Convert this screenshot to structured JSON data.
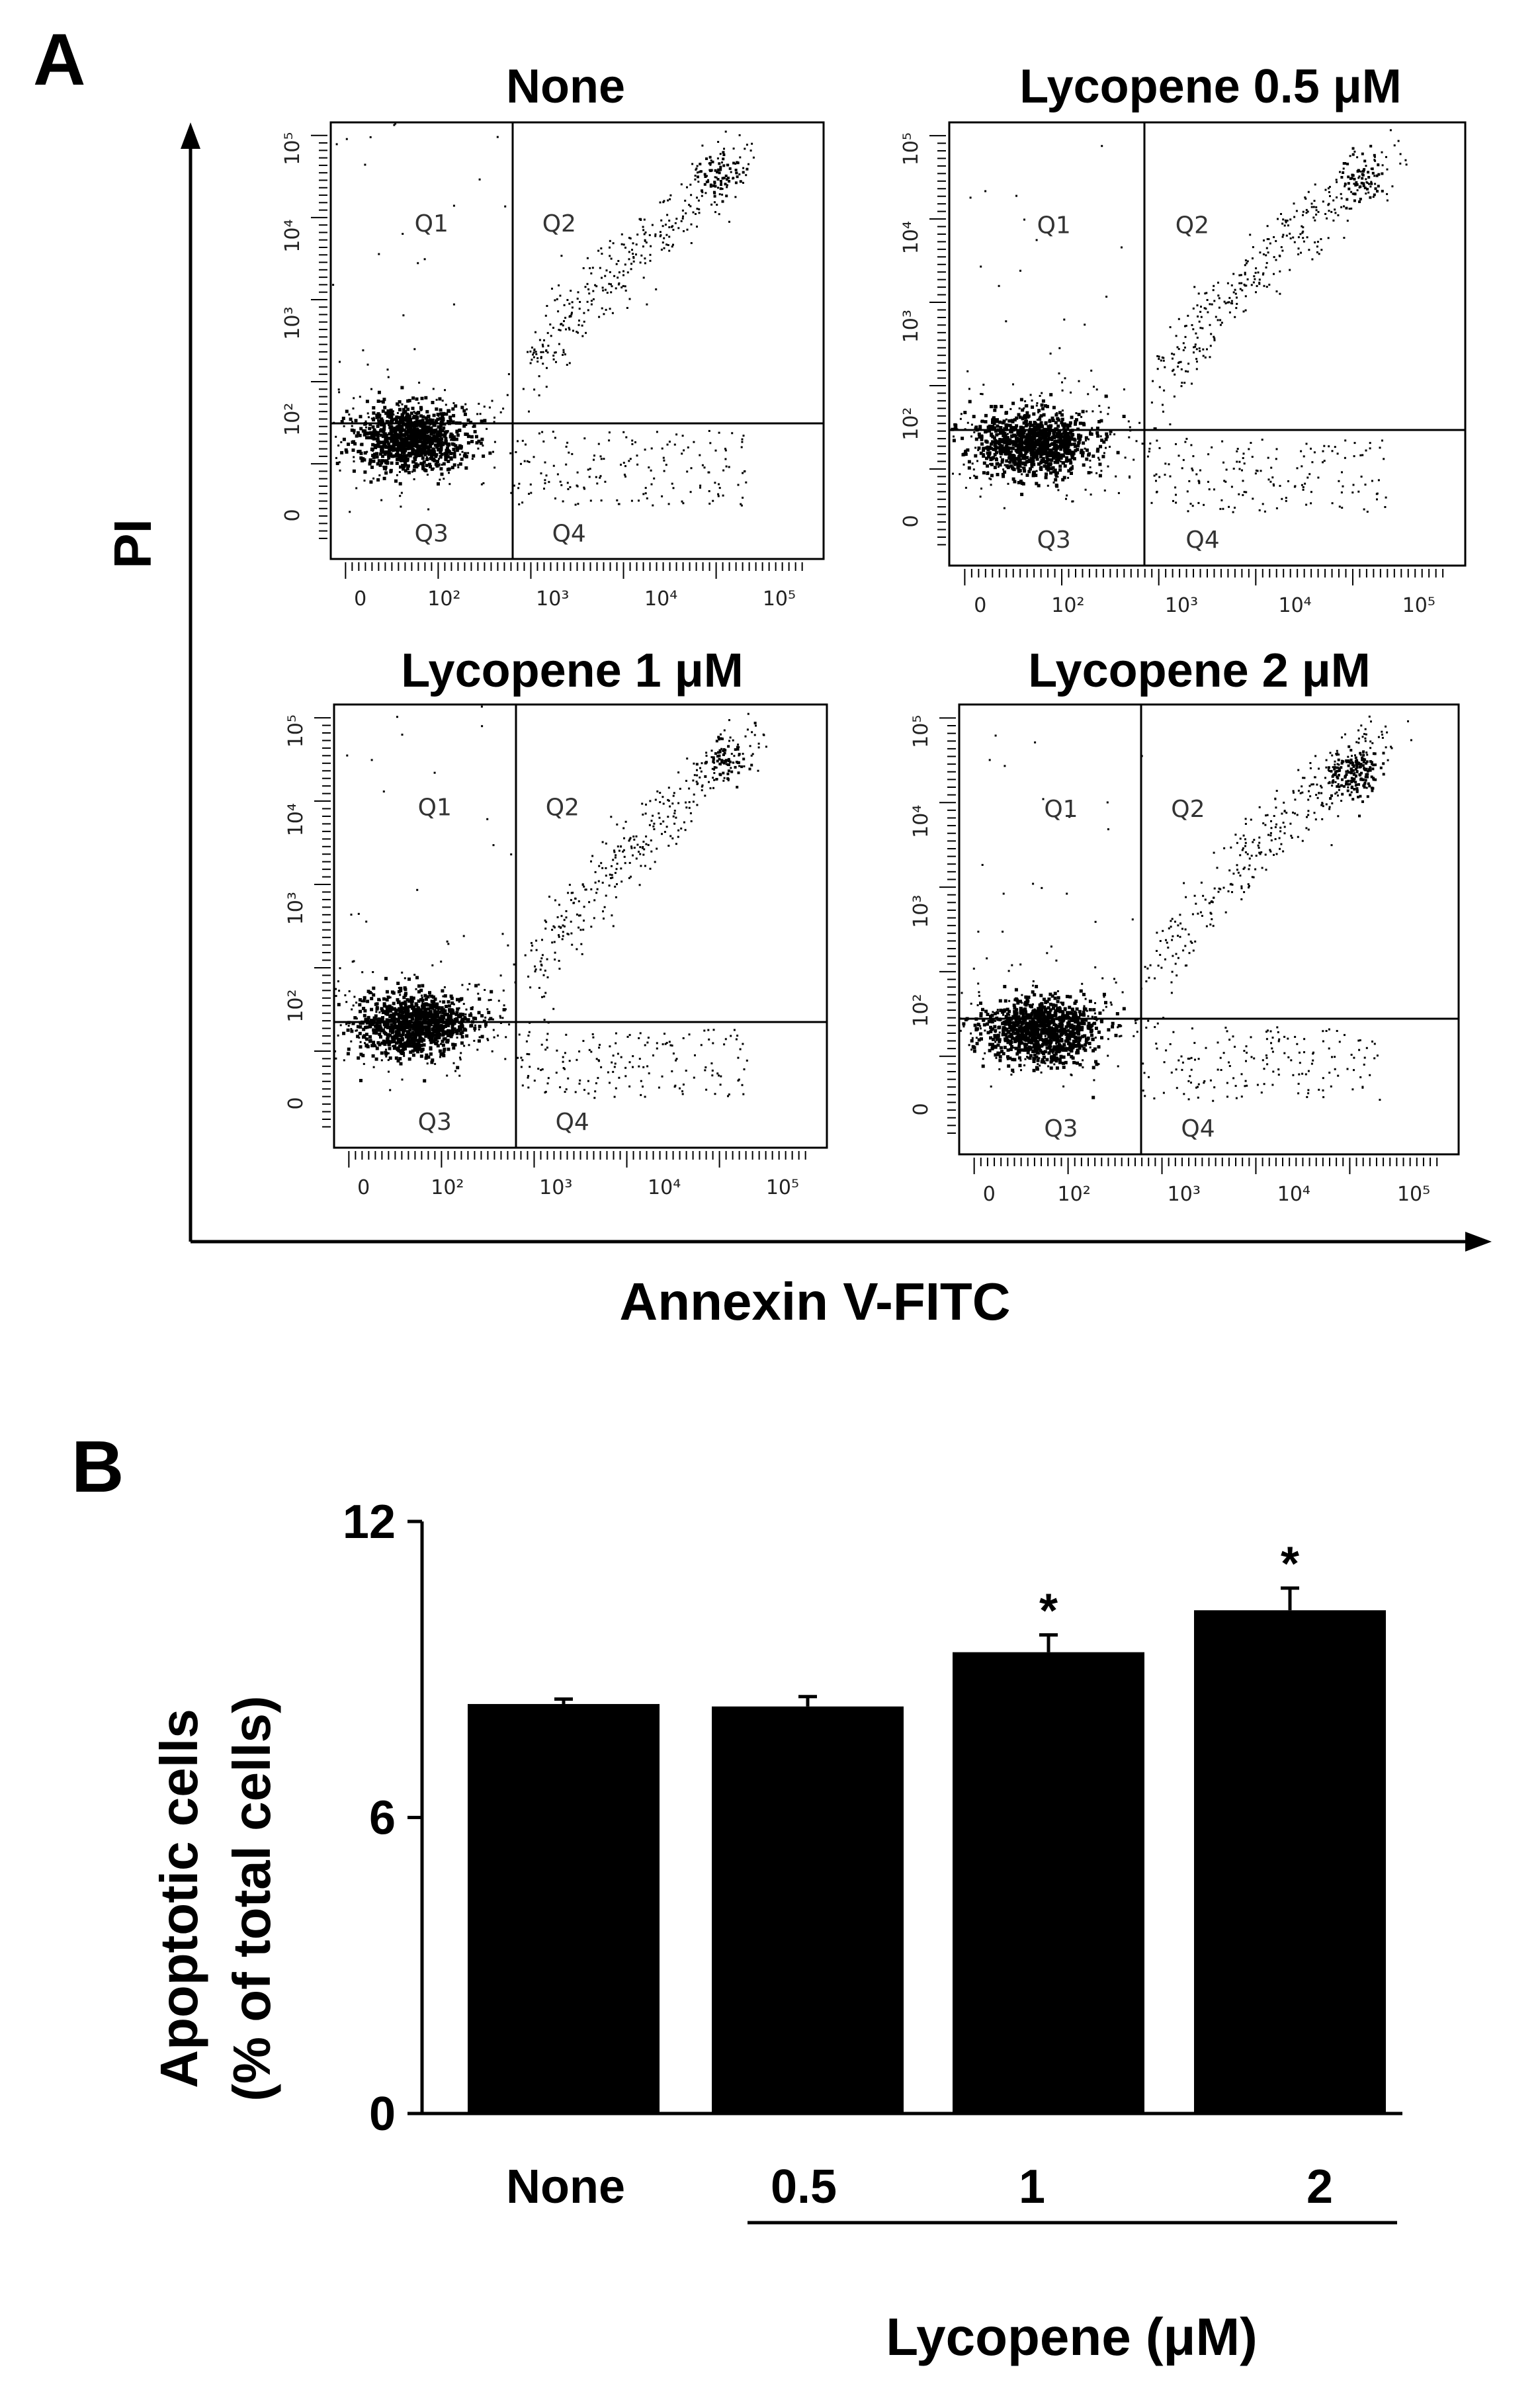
{
  "panel_a": {
    "label": "A",
    "y_axis_label": "PI",
    "x_axis_label": "Annexin V-FITC",
    "plots": [
      {
        "title": "None",
        "quadrants": [
          "Q1",
          "Q2",
          "Q3",
          "Q4"
        ],
        "dense_q2": false
      },
      {
        "title": "Lycopene 0.5 μM",
        "quadrants": [
          "Q1",
          "Q2",
          "Q3",
          "Q4"
        ],
        "dense_q2": false
      },
      {
        "title": "Lycopene 1 μM",
        "quadrants": [
          "Q1",
          "Q2",
          "Q3",
          "Q4"
        ],
        "dense_q2": false
      },
      {
        "title": "Lycopene 2 μM",
        "quadrants": [
          "Q1",
          "Q2",
          "Q3",
          "Q4"
        ],
        "dense_q2": true
      }
    ],
    "x_ticks": [
      "0",
      "10²",
      "10³",
      "10⁴",
      "10⁵"
    ],
    "y_ticks": [
      "0",
      "10²",
      "10³",
      "10⁴",
      "10⁵"
    ]
  },
  "panel_b": {
    "label": "B",
    "xlabel_group": "Lycopene (μM)"
  },
  "chart_data": {
    "type": "bar",
    "categories": [
      "None",
      "0.5",
      "1",
      "2"
    ],
    "values": [
      8.3,
      8.25,
      9.35,
      10.2
    ],
    "errors": [
      0.1,
      0.2,
      0.35,
      0.45
    ],
    "significance": [
      "",
      "",
      "*",
      "*"
    ],
    "ylabel_line1": "Apoptotic cells",
    "ylabel_line2": "(% of total cells)",
    "ylim": [
      0,
      12
    ],
    "yticks": [
      0,
      6,
      12
    ],
    "bar_color": "#000000"
  }
}
